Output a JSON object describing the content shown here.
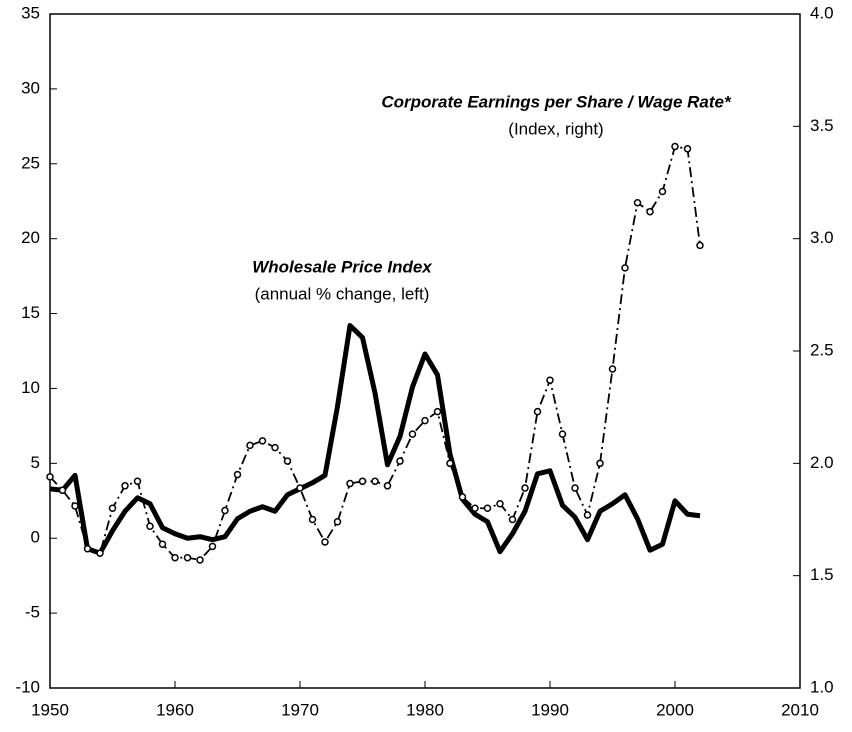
{
  "chart_data": {
    "type": "line",
    "annotations": [
      {
        "text": "Corporate Earnings per Share / Wage Rate*",
        "subtext": "(Index, right)"
      },
      {
        "text": "Wholesale Price Index",
        "subtext": "(annual % change, left)"
      }
    ],
    "x": [
      1950,
      1951,
      1952,
      1953,
      1954,
      1955,
      1956,
      1957,
      1958,
      1959,
      1960,
      1961,
      1962,
      1963,
      1964,
      1965,
      1966,
      1967,
      1968,
      1969,
      1970,
      1971,
      1972,
      1973,
      1974,
      1975,
      1976,
      1977,
      1978,
      1979,
      1980,
      1981,
      1982,
      1983,
      1984,
      1985,
      1986,
      1987,
      1988,
      1989,
      1990,
      1991,
      1992,
      1993,
      1994,
      1995,
      1996,
      1997,
      1998,
      1999,
      2000,
      2001,
      2002
    ],
    "series": [
      {
        "name": "Wholesale Price Index",
        "color": "#000000",
        "axis": "y",
        "values": [
          3.3,
          3.2,
          4.2,
          -0.7,
          -1.0,
          0.5,
          1.8,
          2.7,
          2.3,
          0.7,
          0.3,
          0.0,
          0.1,
          -0.1,
          0.1,
          1.3,
          1.8,
          2.1,
          1.8,
          2.9,
          3.3,
          3.7,
          4.2,
          8.8,
          14.2,
          13.4,
          9.7,
          4.9,
          6.8,
          10.1,
          12.3,
          10.9,
          5.6,
          2.6,
          1.6,
          1.1,
          -0.9,
          0.3,
          1.8,
          4.3,
          4.5,
          2.2,
          1.4,
          -0.1,
          1.8,
          2.3,
          2.9,
          1.3,
          -0.8,
          -0.4,
          2.5,
          1.6,
          1.5
        ]
      },
      {
        "name": "Corporate Earnings per Share / Wage Rate*",
        "color": "#000000",
        "axis": "y2",
        "values": [
          1.94,
          1.88,
          1.81,
          1.62,
          1.6,
          1.8,
          1.9,
          1.92,
          1.72,
          1.64,
          1.58,
          1.58,
          1.57,
          1.63,
          1.79,
          1.95,
          2.08,
          2.1,
          2.07,
          2.01,
          1.89,
          1.75,
          1.65,
          1.74,
          1.91,
          1.92,
          1.92,
          1.9,
          2.01,
          2.13,
          2.19,
          2.23,
          2.0,
          1.85,
          1.8,
          1.8,
          1.82,
          1.75,
          1.89,
          2.23,
          2.37,
          2.13,
          1.89,
          1.77,
          2.0,
          2.42,
          2.87,
          3.16,
          3.12,
          3.21,
          3.41,
          3.4,
          2.97
        ]
      }
    ],
    "xlim": [
      1950,
      2010
    ],
    "xticks": [
      1950,
      1960,
      1970,
      1980,
      1990,
      2000,
      2010
    ],
    "ylim": [
      -10,
      35
    ],
    "yticks": [
      -10,
      -5,
      0,
      5,
      10,
      15,
      20,
      25,
      30,
      35
    ],
    "y2lim": [
      1.0,
      4.0
    ],
    "y2ticks": [
      {
        "value": 1.0,
        "label": "1.0"
      },
      {
        "value": 1.5,
        "label": "1.5"
      },
      {
        "value": 2.0,
        "label": "2.0"
      },
      {
        "value": 2.5,
        "label": "2.5"
      },
      {
        "value": 3.0,
        "label": "3.0"
      },
      {
        "value": 3.5,
        "label": "3.5"
      },
      {
        "value": 4.0,
        "label": "4.0"
      }
    ],
    "grid": false
  }
}
